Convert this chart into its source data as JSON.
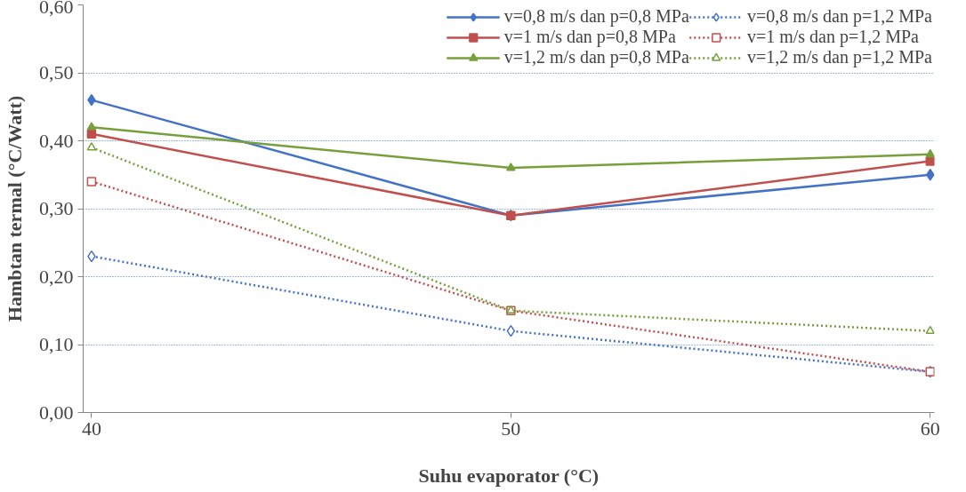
{
  "chart_data": {
    "type": "line",
    "xlabel": "Suhu evaporator (°C)",
    "ylabel": "Hambtan termal (°C/Watt)",
    "x": [
      40,
      50,
      60
    ],
    "xlim": [
      39.8,
      60.1
    ],
    "xticks": [
      40,
      50,
      60
    ],
    "ylim": [
      0,
      0.6
    ],
    "yticks": [
      {
        "value": 0,
        "label": "0,00"
      },
      {
        "value": 0.1,
        "label": "0,10"
      },
      {
        "value": 0.2,
        "label": "0,20"
      },
      {
        "value": 0.3,
        "label": "0,30"
      },
      {
        "value": 0.4,
        "label": "0,40"
      },
      {
        "value": 0.5,
        "label": "0,50"
      },
      {
        "value": 0.6,
        "label": "0,60"
      }
    ],
    "grid": "y",
    "legend": "top right",
    "series": [
      {
        "name": "v=0,8 m/s dan p=0,8 MPa",
        "color": "#4472c4",
        "values": [
          0.46,
          0.29,
          0.35
        ],
        "marker": "diamond",
        "line_style": "solid"
      },
      {
        "name": "v=1 m/s dan p=0,8 MPa",
        "color": "#c0504d",
        "values": [
          0.41,
          0.29,
          0.37
        ],
        "marker": "square",
        "line_style": "solid"
      },
      {
        "name": "v=1,2 m/s dan p=0,8 MPa",
        "color": "#77a03c",
        "values": [
          0.42,
          0.36,
          0.38
        ],
        "marker": "triangle",
        "line_style": "solid"
      },
      {
        "name": "v=0,8 m/s dan p=1,2 MPa",
        "color": "#4472c4",
        "values": [
          0.23,
          0.12,
          0.06
        ],
        "marker": "diamond",
        "line_style": "dotted"
      },
      {
        "name": "v=1 m/s dan p=1,2 MPa",
        "color": "#c0504d",
        "values": [
          0.34,
          0.15,
          0.06
        ],
        "marker": "square",
        "line_style": "dotted"
      },
      {
        "name": "v=1,2 m/s dan p=1,2 MPa",
        "color": "#77a03c",
        "values": [
          0.39,
          0.15,
          0.12
        ],
        "marker": "triangle",
        "line_style": "dotted"
      }
    ]
  }
}
